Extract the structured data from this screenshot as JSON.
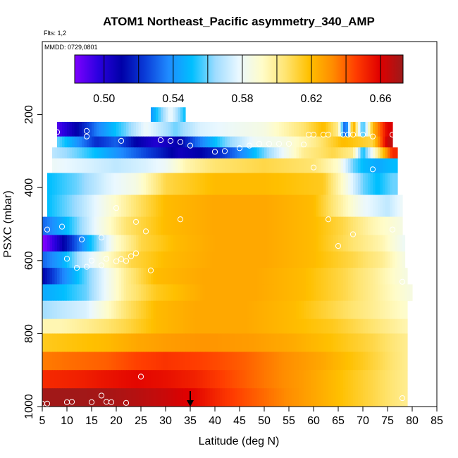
{
  "chart_data": {
    "type": "heatmap",
    "title": "ATOM1 Northeast_Pacific asymmetry_340_AMP",
    "flights_label": "Flts: 1,2",
    "dates_label": "MMDD: 0729,0801",
    "xlabel": "Latitude (deg N)",
    "ylabel": "PSXC (mbar)",
    "xlim": [
      5,
      85
    ],
    "ylim": [
      1000,
      0
    ],
    "x_ticks": [
      5,
      10,
      15,
      20,
      25,
      30,
      35,
      40,
      45,
      50,
      55,
      60,
      65,
      70,
      75,
      80,
      85
    ],
    "y_ticks": [
      200,
      400,
      600,
      800,
      1000
    ],
    "colorbar": {
      "min": 0.483,
      "max": 0.673,
      "ticks": [
        0.5,
        0.54,
        0.58,
        0.62,
        0.66
      ],
      "tick_labels": [
        "0.50",
        "0.54",
        "0.58",
        "0.62",
        "0.66"
      ],
      "colors": [
        "#7f00ff",
        "#2b00e0",
        "#0000a8",
        "#0a3cd8",
        "#1f8bff",
        "#00bfff",
        "#9fdcff",
        "#eaf8ff",
        "#fffcc8",
        "#ffe470",
        "#ffc000",
        "#ff8c00",
        "#ff3c00",
        "#e00000",
        "#9c1a1a"
      ]
    },
    "arrow_latitude": 35,
    "layers": [
      {
        "pressure": [
          180,
          220
        ],
        "x": [
          27,
          34
        ],
        "profile": [
          [
            27,
            0.54
          ],
          [
            31,
            0.58
          ],
          [
            34,
            0.55
          ]
        ]
      },
      {
        "pressure": [
          220,
          260
        ],
        "x": [
          8,
          76
        ],
        "profile": [
          [
            8,
            0.49
          ],
          [
            12,
            0.51
          ],
          [
            16,
            0.535
          ],
          [
            22,
            0.56
          ],
          [
            26,
            0.58
          ],
          [
            32,
            0.56
          ],
          [
            37,
            0.575
          ],
          [
            43,
            0.58
          ],
          [
            50,
            0.585
          ],
          [
            58,
            0.605
          ],
          [
            62,
            0.62
          ],
          [
            65,
            0.6
          ],
          [
            66.5,
            0.52
          ],
          [
            68,
            0.63
          ],
          [
            70,
            0.55
          ],
          [
            72,
            0.62
          ],
          [
            75,
            0.66
          ]
        ]
      },
      {
        "pressure": [
          260,
          290
        ],
        "x": [
          8,
          76
        ],
        "profile": [
          [
            8,
            0.56
          ],
          [
            12,
            0.54
          ],
          [
            16,
            0.52
          ],
          [
            20,
            0.53
          ],
          [
            24,
            0.51
          ],
          [
            28,
            0.5
          ],
          [
            33,
            0.51
          ],
          [
            36,
            0.53
          ],
          [
            42,
            0.56
          ],
          [
            48,
            0.58
          ],
          [
            54,
            0.585
          ],
          [
            60,
            0.6
          ],
          [
            66,
            0.62
          ],
          [
            72,
            0.61
          ],
          [
            75,
            0.665
          ]
        ]
      },
      {
        "pressure": [
          290,
          320
        ],
        "x": [
          7,
          77
        ],
        "profile": [
          [
            7,
            0.57
          ],
          [
            12,
            0.56
          ],
          [
            18,
            0.545
          ],
          [
            24,
            0.53
          ],
          [
            28,
            0.52
          ],
          [
            33,
            0.505
          ],
          [
            37,
            0.51
          ],
          [
            41,
            0.52
          ],
          [
            46,
            0.54
          ],
          [
            52,
            0.57
          ],
          [
            58,
            0.6
          ],
          [
            64,
            0.61
          ],
          [
            68,
            0.6
          ],
          [
            70,
            0.55
          ],
          [
            73,
            0.6
          ],
          [
            76,
            0.65
          ]
        ]
      },
      {
        "pressure": [
          320,
          360
        ],
        "x": [
          7,
          77
        ],
        "profile": [
          [
            7,
            0.58
          ],
          [
            14,
            0.575
          ],
          [
            20,
            0.57
          ],
          [
            26,
            0.575
          ],
          [
            30,
            0.58
          ],
          [
            34,
            0.595
          ],
          [
            40,
            0.605
          ],
          [
            50,
            0.61
          ],
          [
            60,
            0.605
          ],
          [
            65,
            0.59
          ],
          [
            68,
            0.56
          ],
          [
            70,
            0.55
          ],
          [
            73,
            0.545
          ],
          [
            76,
            0.55
          ]
        ]
      },
      {
        "pressure": [
          360,
          420
        ],
        "x": [
          6,
          77
        ],
        "profile": [
          [
            6,
            0.55
          ],
          [
            12,
            0.56
          ],
          [
            18,
            0.575
          ],
          [
            24,
            0.585
          ],
          [
            30,
            0.61
          ],
          [
            40,
            0.62
          ],
          [
            50,
            0.62
          ],
          [
            62,
            0.615
          ],
          [
            66,
            0.59
          ],
          [
            70,
            0.56
          ],
          [
            73,
            0.55
          ],
          [
            76,
            0.56
          ]
        ]
      },
      {
        "pressure": [
          420,
          480
        ],
        "x": [
          6,
          78
        ],
        "profile": [
          [
            6,
            0.55
          ],
          [
            12,
            0.565
          ],
          [
            18,
            0.585
          ],
          [
            24,
            0.605
          ],
          [
            30,
            0.62
          ],
          [
            40,
            0.625
          ],
          [
            50,
            0.625
          ],
          [
            60,
            0.62
          ],
          [
            65,
            0.6
          ],
          [
            70,
            0.58
          ],
          [
            75,
            0.57
          ],
          [
            78,
            0.58
          ]
        ]
      },
      {
        "pressure": [
          480,
          530
        ],
        "x": [
          5,
          78
        ],
        "profile": [
          [
            5,
            0.53
          ],
          [
            10,
            0.55
          ],
          [
            16,
            0.58
          ],
          [
            22,
            0.605
          ],
          [
            30,
            0.62
          ],
          [
            40,
            0.625
          ],
          [
            50,
            0.625
          ],
          [
            60,
            0.62
          ],
          [
            66,
            0.61
          ],
          [
            72,
            0.595
          ],
          [
            78,
            0.585
          ]
        ]
      },
      {
        "pressure": [
          530,
          575
        ],
        "x": [
          5,
          78.5
        ],
        "profile": [
          [
            5,
            0.48
          ],
          [
            8,
            0.5
          ],
          [
            12,
            0.53
          ],
          [
            16,
            0.56
          ],
          [
            20,
            0.59
          ],
          [
            25,
            0.61
          ],
          [
            32,
            0.62
          ],
          [
            40,
            0.625
          ],
          [
            50,
            0.625
          ],
          [
            60,
            0.62
          ],
          [
            68,
            0.605
          ],
          [
            74,
            0.595
          ],
          [
            78.5,
            0.58
          ]
        ]
      },
      {
        "pressure": [
          575,
          620
        ],
        "x": [
          5,
          78.5
        ],
        "profile": [
          [
            5,
            0.53
          ],
          [
            9,
            0.545
          ],
          [
            13,
            0.57
          ],
          [
            18,
            0.59
          ],
          [
            23,
            0.61
          ],
          [
            30,
            0.62
          ],
          [
            40,
            0.625
          ],
          [
            50,
            0.625
          ],
          [
            60,
            0.62
          ],
          [
            68,
            0.61
          ],
          [
            74,
            0.6
          ],
          [
            78.5,
            0.585
          ]
        ]
      },
      {
        "pressure": [
          620,
          665
        ],
        "x": [
          5,
          79
        ],
        "profile": [
          [
            5,
            0.51
          ],
          [
            9,
            0.535
          ],
          [
            13,
            0.555
          ],
          [
            18,
            0.58
          ],
          [
            22,
            0.6
          ],
          [
            28,
            0.62
          ],
          [
            38,
            0.625
          ],
          [
            48,
            0.625
          ],
          [
            58,
            0.62
          ],
          [
            66,
            0.61
          ],
          [
            72,
            0.6
          ],
          [
            79,
            0.585
          ]
        ]
      },
      {
        "pressure": [
          665,
          710
        ],
        "x": [
          5,
          80
        ],
        "profile": [
          [
            5,
            0.545
          ],
          [
            9,
            0.55
          ],
          [
            14,
            0.56
          ],
          [
            18,
            0.58
          ],
          [
            22,
            0.6
          ],
          [
            28,
            0.615
          ],
          [
            38,
            0.625
          ],
          [
            48,
            0.625
          ],
          [
            58,
            0.62
          ],
          [
            66,
            0.61
          ],
          [
            72,
            0.6
          ],
          [
            80,
            0.585
          ]
        ]
      },
      {
        "pressure": [
          710,
          760
        ],
        "x": [
          5,
          79
        ],
        "profile": [
          [
            5,
            0.565
          ],
          [
            9,
            0.57
          ],
          [
            14,
            0.575
          ],
          [
            18,
            0.59
          ],
          [
            22,
            0.605
          ],
          [
            28,
            0.62
          ],
          [
            36,
            0.625
          ],
          [
            46,
            0.625
          ],
          [
            56,
            0.62
          ],
          [
            64,
            0.61
          ],
          [
            72,
            0.6
          ],
          [
            79,
            0.59
          ]
        ]
      },
      {
        "pressure": [
          760,
          800
        ],
        "x": [
          5,
          79
        ],
        "profile": [
          [
            5,
            0.595
          ],
          [
            9,
            0.595
          ],
          [
            14,
            0.6
          ],
          [
            18,
            0.605
          ],
          [
            22,
            0.61
          ],
          [
            28,
            0.62
          ],
          [
            36,
            0.625
          ],
          [
            46,
            0.625
          ],
          [
            56,
            0.62
          ],
          [
            64,
            0.615
          ],
          [
            72,
            0.605
          ],
          [
            79,
            0.595
          ]
        ]
      },
      {
        "pressure": [
          800,
          850
        ],
        "x": [
          5,
          79
        ],
        "profile": [
          [
            5,
            0.615
          ],
          [
            10,
            0.617
          ],
          [
            18,
            0.62
          ],
          [
            24,
            0.625
          ],
          [
            30,
            0.628
          ],
          [
            38,
            0.63
          ],
          [
            48,
            0.628
          ],
          [
            56,
            0.624
          ],
          [
            64,
            0.618
          ],
          [
            72,
            0.61
          ],
          [
            79,
            0.6
          ]
        ]
      },
      {
        "pressure": [
          850,
          900
        ],
        "x": [
          5,
          79
        ],
        "profile": [
          [
            5,
            0.635
          ],
          [
            12,
            0.638
          ],
          [
            18,
            0.64
          ],
          [
            24,
            0.645
          ],
          [
            30,
            0.648
          ],
          [
            38,
            0.645
          ],
          [
            46,
            0.64
          ],
          [
            54,
            0.632
          ],
          [
            62,
            0.625
          ],
          [
            70,
            0.615
          ],
          [
            79,
            0.6
          ]
        ]
      },
      {
        "pressure": [
          900,
          950
        ],
        "x": [
          5,
          79
        ],
        "profile": [
          [
            5,
            0.65
          ],
          [
            12,
            0.652
          ],
          [
            18,
            0.655
          ],
          [
            24,
            0.658
          ],
          [
            30,
            0.656
          ],
          [
            36,
            0.652
          ],
          [
            42,
            0.645
          ],
          [
            50,
            0.636
          ],
          [
            58,
            0.628
          ],
          [
            66,
            0.618
          ],
          [
            72,
            0.61
          ],
          [
            79,
            0.6
          ]
        ]
      },
      {
        "pressure": [
          950,
          1000
        ],
        "x": [
          5,
          79
        ],
        "profile": [
          [
            5,
            0.672
          ],
          [
            12,
            0.672
          ],
          [
            18,
            0.671
          ],
          [
            24,
            0.668
          ],
          [
            30,
            0.664
          ],
          [
            36,
            0.658
          ],
          [
            42,
            0.648
          ],
          [
            50,
            0.638
          ],
          [
            58,
            0.628
          ],
          [
            66,
            0.618
          ],
          [
            72,
            0.61
          ],
          [
            79,
            0.6
          ]
        ]
      }
    ],
    "observations": [
      [
        8,
        248
      ],
      [
        14,
        245
      ],
      [
        14,
        260
      ],
      [
        21,
        272
      ],
      [
        29,
        270
      ],
      [
        31,
        272
      ],
      [
        33,
        275
      ],
      [
        35,
        285
      ],
      [
        40,
        302
      ],
      [
        42,
        300
      ],
      [
        45,
        292
      ],
      [
        47,
        285
      ],
      [
        49,
        280
      ],
      [
        51,
        280
      ],
      [
        53,
        280
      ],
      [
        55,
        280
      ],
      [
        58,
        282
      ],
      [
        59,
        255
      ],
      [
        60,
        255
      ],
      [
        62,
        255
      ],
      [
        63,
        255
      ],
      [
        66,
        255
      ],
      [
        67,
        255
      ],
      [
        68,
        255
      ],
      [
        70,
        255
      ],
      [
        72,
        260
      ],
      [
        76,
        255
      ],
      [
        72,
        350
      ],
      [
        60,
        345
      ],
      [
        9,
        507
      ],
      [
        6,
        515
      ],
      [
        10,
        595
      ],
      [
        12,
        620
      ],
      [
        14,
        617
      ],
      [
        15,
        600
      ],
      [
        17,
        613
      ],
      [
        18,
        595
      ],
      [
        20,
        602
      ],
      [
        21,
        596
      ],
      [
        22,
        601
      ],
      [
        23,
        588
      ],
      [
        24,
        580
      ],
      [
        26,
        520
      ],
      [
        33,
        487
      ],
      [
        20,
        456
      ],
      [
        24,
        494
      ],
      [
        27,
        627
      ],
      [
        13,
        542
      ],
      [
        17,
        537
      ],
      [
        63,
        487
      ],
      [
        65,
        560
      ],
      [
        68,
        528
      ],
      [
        76,
        515
      ],
      [
        78,
        658
      ],
      [
        25,
        918
      ],
      [
        17,
        970
      ],
      [
        18,
        987
      ],
      [
        19,
        988
      ],
      [
        10,
        988
      ],
      [
        11,
        987
      ],
      [
        22,
        990
      ],
      [
        5,
        992
      ],
      [
        6,
        992
      ],
      [
        15,
        988
      ],
      [
        78,
        977
      ]
    ]
  }
}
